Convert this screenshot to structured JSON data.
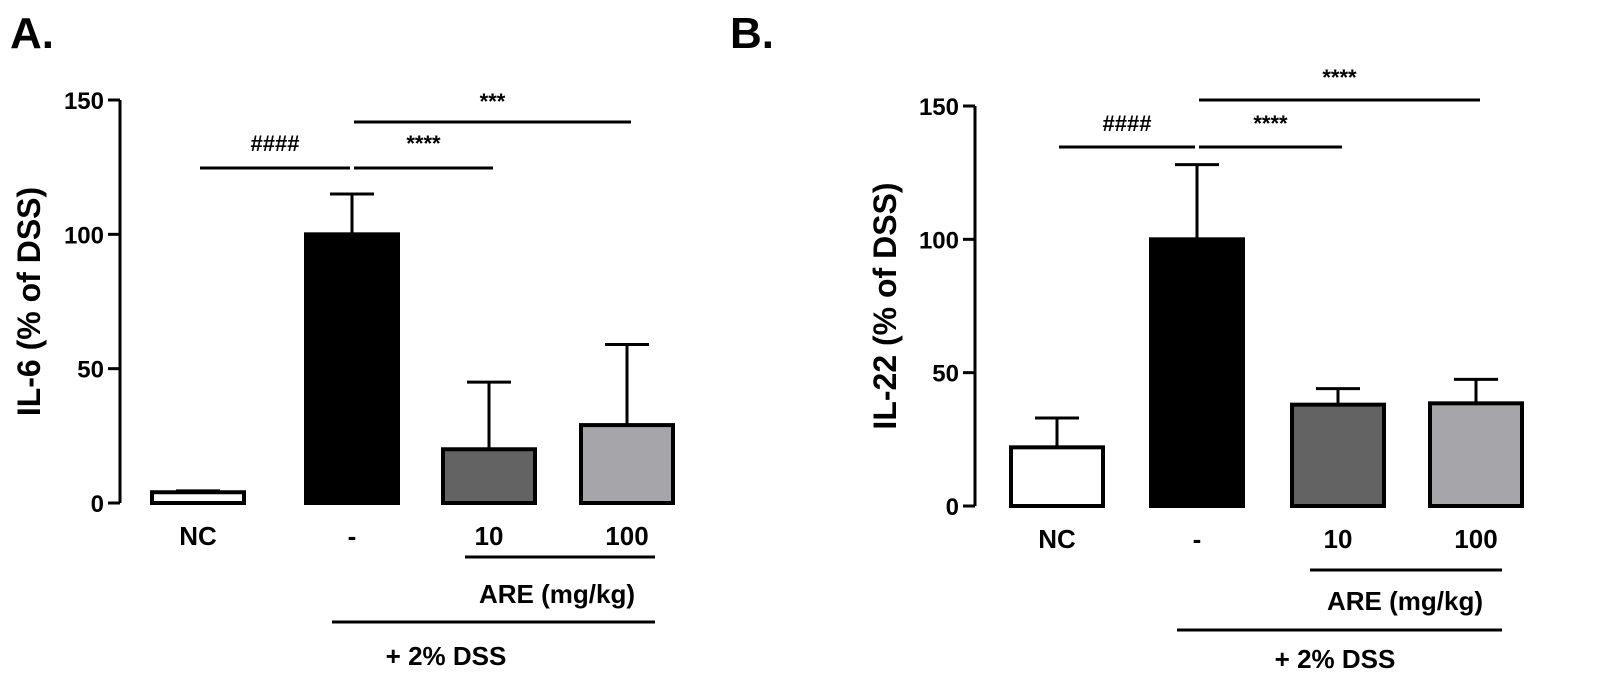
{
  "chart_data": [
    {
      "type": "bar",
      "panel_label": "A.",
      "ylabel": "IL-6 (% of DSS)",
      "ylim": [
        0,
        150
      ],
      "yticks": [
        0,
        50,
        100,
        150
      ],
      "categories": [
        "NC",
        "-",
        "10",
        "100"
      ],
      "values": [
        4,
        100,
        20,
        29
      ],
      "errors": [
        0.5,
        15,
        25,
        30
      ],
      "colors": [
        "#ffffff",
        "#000000",
        "#636363",
        "#a6a6aa"
      ],
      "group_labels": {
        "treatment": "ARE (mg/kg)",
        "model": "+ 2% DSS"
      },
      "significance": [
        {
          "label": "####",
          "from": "NC",
          "to": "-"
        },
        {
          "label": "****",
          "from": "-",
          "to": "10"
        },
        {
          "label": "***",
          "from": "-",
          "to": "100"
        }
      ],
      "grid": false,
      "legend": "none"
    },
    {
      "type": "bar",
      "panel_label": "B.",
      "ylabel": "IL-22 (% of DSS)",
      "ylim": [
        0,
        150
      ],
      "yticks": [
        0,
        50,
        100,
        150
      ],
      "categories": [
        "NC",
        "-",
        "10",
        "100"
      ],
      "values": [
        22,
        100,
        38,
        38.5
      ],
      "errors": [
        11,
        28,
        6,
        9
      ],
      "colors": [
        "#ffffff",
        "#000000",
        "#636363",
        "#a6a6aa"
      ],
      "group_labels": {
        "treatment": "ARE (mg/kg)",
        "model": "+ 2% DSS"
      },
      "significance": [
        {
          "label": "####",
          "from": "NC",
          "to": "-"
        },
        {
          "label": "****",
          "from": "-",
          "to": "10"
        },
        {
          "label": "****",
          "from": "-",
          "to": "100"
        }
      ],
      "grid": false,
      "legend": "none"
    }
  ]
}
